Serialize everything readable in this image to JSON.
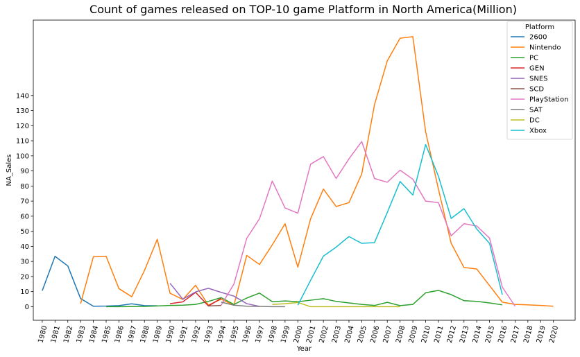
{
  "chart_data": {
    "type": "line",
    "title": "Count of games released on TOP-10 game Platform in North America(Million)",
    "xlabel": "Year",
    "ylabel": "NA_Sales",
    "xlim": [
      1979.3,
      2021.7
    ],
    "ylim": [
      -9,
      190
    ],
    "yticks": [
      0,
      10,
      20,
      30,
      40,
      50,
      60,
      70,
      80,
      90,
      100,
      110,
      120,
      130,
      140
    ],
    "xticks": [
      "1980",
      "1981",
      "1982",
      "1983",
      "1984",
      "1985",
      "1986",
      "1987",
      "1988",
      "1989",
      "1990",
      "1991",
      "1992",
      "1993",
      "1994",
      "1995",
      "1996",
      "1997",
      "1998",
      "1999",
      "2000",
      "2001",
      "2002",
      "2003",
      "2004",
      "2005",
      "2006",
      "2007",
      "2008",
      "2009",
      "2010",
      "2011",
      "2012",
      "2013",
      "2014",
      "2015",
      "2016",
      "2017",
      "2018",
      "2019",
      "2020"
    ],
    "legend": {
      "title": "Platform",
      "placement": "top-right"
    },
    "series": [
      {
        "name": "2600",
        "color": "#1f77b4",
        "x": [
          1980,
          1981,
          1982,
          1983,
          1984,
          1985,
          1986,
          1987,
          1988,
          1989
        ],
        "y": [
          10.6,
          33.4,
          27.0,
          5.4,
          0.3,
          0.4,
          0.7,
          1.9,
          0.7,
          0.6
        ]
      },
      {
        "name": "Nintendo",
        "color": "#ff7f0e",
        "x": [
          1983,
          1984,
          1985,
          1986,
          1987,
          1988,
          1989,
          1990,
          1991,
          1992,
          1993,
          1994,
          1995,
          1996,
          1997,
          1998,
          1999,
          2000,
          2001,
          2002,
          2003,
          2004,
          2005,
          2006,
          2007,
          2008,
          2009,
          2010,
          2011,
          2012,
          2013,
          2014,
          2015,
          2016,
          2017,
          2018,
          2019,
          2020
        ],
        "y": [
          2.0,
          33.1,
          33.4,
          12.0,
          6.6,
          24.0,
          44.7,
          8.9,
          4.8,
          14.2,
          1.0,
          5.0,
          0.9,
          34.0,
          28.0,
          41.0,
          55.0,
          26.2,
          58.3,
          78.0,
          66.4,
          69.0,
          88.0,
          134.0,
          163.0,
          178.0,
          179.0,
          116.0,
          78.0,
          42.0,
          26.0,
          25.0,
          14.0,
          3.0,
          1.5,
          1.2,
          0.8,
          0.3
        ]
      },
      {
        "name": "PC",
        "color": "#2ca02c",
        "x": [
          1985,
          1986,
          1987,
          1988,
          1989,
          1990,
          1991,
          1992,
          1993,
          1994,
          1995,
          1996,
          1997,
          1998,
          1999,
          2000,
          2001,
          2002,
          2003,
          2004,
          2005,
          2006,
          2007,
          2008,
          2009,
          2010,
          2011,
          2012,
          2013,
          2014,
          2015,
          2016
        ],
        "y": [
          0.0,
          0.0,
          0.1,
          0.2,
          0.5,
          0.8,
          1.0,
          1.5,
          3.5,
          6.0,
          1.5,
          5.7,
          9.0,
          3.3,
          3.8,
          3.3,
          4.3,
          5.3,
          3.5,
          2.5,
          1.5,
          0.8,
          2.9,
          0.7,
          1.5,
          9.2,
          10.8,
          8.0,
          4.0,
          3.5,
          2.5,
          1.2
        ]
      },
      {
        "name": "GEN",
        "color": "#d62728",
        "x": [
          1990,
          1991,
          1992,
          1993,
          1994
        ],
        "y": [
          2.0,
          3.2,
          9.5,
          0.5,
          5.5
        ]
      },
      {
        "name": "SNES",
        "color": "#9467bd",
        "x": [
          1990,
          1991,
          1992,
          1993,
          1994,
          1995,
          1996,
          1997
        ],
        "y": [
          15.5,
          5.0,
          9.8,
          12.2,
          9.5,
          7.0,
          2.0,
          0.2
        ]
      },
      {
        "name": "SCD",
        "color": "#8c564b",
        "x": [
          1993,
          1994
        ],
        "y": [
          0.5,
          0.8
        ]
      },
      {
        "name": "PlayStation",
        "color": "#e377c2",
        "x": [
          1994,
          1995,
          1996,
          1997,
          1998,
          1999,
          2000,
          2001,
          2002,
          2003,
          2004,
          2005,
          2006,
          2007,
          2008,
          2009,
          2010,
          2011,
          2012,
          2013,
          2014,
          2015,
          2016,
          2017
        ],
        "y": [
          1.0,
          15.0,
          45.3,
          58.3,
          83.3,
          65.5,
          62.0,
          94.5,
          99.5,
          85.0,
          98.0,
          109.5,
          85.0,
          82.5,
          90.5,
          84.5,
          70.0,
          69.0,
          47.0,
          55.0,
          53.5,
          45.5,
          13.0,
          0.3
        ]
      },
      {
        "name": "SAT",
        "color": "#7f7f7f",
        "x": [
          1994,
          1995,
          1996,
          1997,
          1998,
          1999
        ],
        "y": [
          3.0,
          1.0,
          0.3,
          0.2,
          0.0,
          0.0
        ]
      },
      {
        "name": "DC",
        "color": "#bcbd22",
        "x": [
          1998,
          1999,
          2000,
          2001,
          2002,
          2003,
          2004,
          2005,
          2006,
          2007,
          2008
        ],
        "y": [
          1.5,
          2.0,
          2.8,
          0.0,
          0.0,
          0.0,
          0.0,
          0.0,
          0.0,
          0.0,
          0.0
        ]
      },
      {
        "name": "Xbox",
        "color": "#17becf",
        "x": [
          2000,
          2001,
          2002,
          2003,
          2004,
          2005,
          2006,
          2007,
          2008,
          2009,
          2010,
          2011,
          2012,
          2013,
          2014,
          2015,
          2016
        ],
        "y": [
          1.0,
          17.5,
          33.5,
          39.5,
          46.5,
          42.0,
          42.5,
          62.5,
          83.0,
          74.0,
          107.5,
          86.5,
          58.5,
          65.0,
          51.5,
          42.0,
          8.0
        ]
      }
    ]
  }
}
